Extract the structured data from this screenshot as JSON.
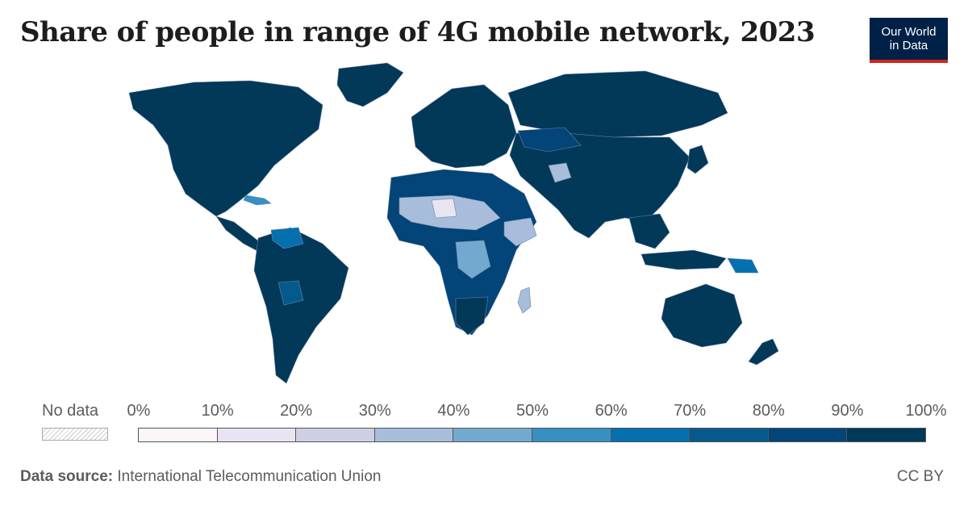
{
  "title": "Share of people in range of 4G mobile network, 2023",
  "logo": {
    "line1": "Our World",
    "line2": "in Data"
  },
  "legend": {
    "no_data_label": "No data",
    "ticks": [
      "0%",
      "10%",
      "20%",
      "30%",
      "40%",
      "50%",
      "60%",
      "70%",
      "80%",
      "90%",
      "100%"
    ],
    "bin_colors": [
      "#fcf6fa",
      "#e9e4f1",
      "#cdd0e5",
      "#a7bddb",
      "#74a9cf",
      "#3690c0",
      "#0570b0",
      "#045a8d",
      "#034479",
      "#023858"
    ]
  },
  "footer": {
    "source_label": "Data source:",
    "source_text": "International Telecommunication Union",
    "license": "CC BY"
  },
  "colors": {
    "land_high": "#023858",
    "ocean": "#ffffff",
    "border": "#6b86a6"
  }
}
